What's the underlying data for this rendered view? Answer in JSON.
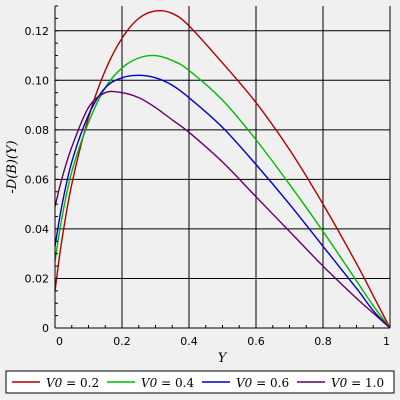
{
  "chart_data": {
    "type": "line",
    "xlabel": "Y",
    "ylabel": "-D(B)(Y)",
    "xlim": [
      0,
      1
    ],
    "ylim": [
      0,
      0.13
    ],
    "xticks": [
      0,
      0.2,
      0.4,
      0.6,
      0.8,
      1
    ],
    "xtick_labels": [
      "0",
      "0.2",
      "0.4",
      "0.6",
      "0.8",
      "1"
    ],
    "yticks": [
      0,
      0.02,
      0.04,
      0.06,
      0.08,
      0.1,
      0.12
    ],
    "ytick_labels": [
      "0",
      "0.02",
      "0.04",
      "0.06",
      "0.08",
      "0.10",
      "0.12"
    ],
    "grid": true,
    "legend_position": "bottom",
    "x": [
      0,
      0.02,
      0.05,
      0.1,
      0.15,
      0.2,
      0.25,
      0.3,
      0.35,
      0.4,
      0.5,
      0.6,
      0.7,
      0.8,
      0.9,
      0.95,
      1.0
    ],
    "series": [
      {
        "name": "V0 = 0.2",
        "legend_var": "V0",
        "legend_val": " = 0.2",
        "color": "#b00000",
        "values": [
          0.015,
          0.035,
          0.058,
          0.085,
          0.104,
          0.117,
          0.125,
          0.128,
          0.127,
          0.122,
          0.107,
          0.091,
          0.072,
          0.05,
          0.026,
          0.013,
          0.0
        ]
      },
      {
        "name": "V0 = 0.4",
        "legend_var": "V0",
        "legend_val": " = 0.4",
        "color": "#00bb00",
        "values": [
          0.027,
          0.044,
          0.063,
          0.083,
          0.097,
          0.105,
          0.109,
          0.11,
          0.108,
          0.104,
          0.092,
          0.076,
          0.058,
          0.039,
          0.019,
          0.009,
          0.0
        ]
      },
      {
        "name": "V0 = 0.6",
        "legend_var": "V0",
        "legend_val": " = 0.6",
        "color": "#0000cc",
        "values": [
          0.033,
          0.049,
          0.067,
          0.086,
          0.097,
          0.101,
          0.102,
          0.101,
          0.098,
          0.093,
          0.081,
          0.066,
          0.05,
          0.033,
          0.016,
          0.007,
          0.0
        ]
      },
      {
        "name": "V0 = 1.0",
        "legend_var": "V0",
        "legend_val": " = 1.0",
        "color": "#660066",
        "values": [
          0.049,
          0.06,
          0.073,
          0.089,
          0.095,
          0.095,
          0.093,
          0.089,
          0.084,
          0.079,
          0.067,
          0.053,
          0.039,
          0.025,
          0.012,
          0.006,
          0.0
        ]
      }
    ]
  }
}
